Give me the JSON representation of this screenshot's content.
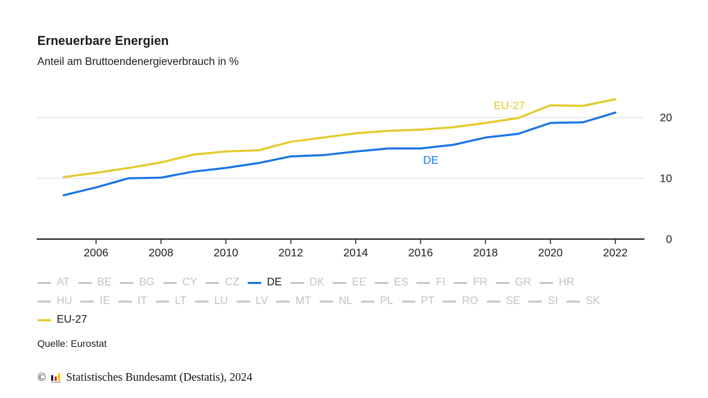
{
  "header": {
    "title": "Erneuerbare Energien",
    "subtitle": "Anteil am Bruttoendenergieverbrauch in %"
  },
  "chart_data": {
    "type": "line",
    "title": "Erneuerbare Energien",
    "subtitle": "Anteil am Bruttoendenergieverbrauch in %",
    "unit": "%",
    "x": [
      2005,
      2006,
      2007,
      2008,
      2009,
      2010,
      2011,
      2012,
      2013,
      2014,
      2015,
      2016,
      2017,
      2018,
      2019,
      2020,
      2021,
      2022
    ],
    "x_ticks": [
      2006,
      2008,
      2010,
      2012,
      2014,
      2016,
      2018,
      2020,
      2022
    ],
    "y_ticks": [
      0,
      10,
      20
    ],
    "ylim": [
      0,
      26
    ],
    "y_axis_side": "right",
    "grid": true,
    "series": [
      {
        "name": "EU-27",
        "color": "#e4ca2a",
        "values": [
          10.2,
          10.9,
          11.7,
          12.6,
          13.9,
          14.4,
          14.6,
          16.0,
          16.7,
          17.4,
          17.8,
          18.0,
          18.4,
          19.1,
          19.9,
          22.0,
          21.9,
          23.0
        ]
      },
      {
        "name": "DE",
        "color": "#1a73e8",
        "values": [
          7.2,
          8.5,
          10.0,
          10.1,
          11.1,
          11.7,
          12.5,
          13.6,
          13.8,
          14.4,
          14.9,
          14.9,
          15.5,
          16.7,
          17.3,
          19.1,
          19.2,
          20.8
        ]
      }
    ],
    "legend_position": "below",
    "xlabel": "",
    "ylabel": ""
  },
  "legend": {
    "rows": [
      [
        "AT",
        "BE",
        "BG",
        "CY",
        "CZ",
        "DE",
        "DK",
        "EE",
        "ES",
        "FI",
        "FR",
        "GR",
        "HR"
      ],
      [
        "HU",
        "IE",
        "IT",
        "LT",
        "LU",
        "LV",
        "MT",
        "NL",
        "PL",
        "PT",
        "RO",
        "SE",
        "SI",
        "SK"
      ],
      [
        "EU-27"
      ]
    ],
    "active": {
      "DE": "#1a73e8",
      "EU-27": "#e4ca2a"
    },
    "inactive_dash_color": "#c9c9cd",
    "inactive_text_color": "#c3c3c7",
    "active_text_color": "#1a1a1a"
  },
  "footer": {
    "source": "Quelle: Eurostat",
    "copyright_symbol": "©",
    "copyright_text": "Statistisches Bundesamt (Destatis), 2024"
  }
}
